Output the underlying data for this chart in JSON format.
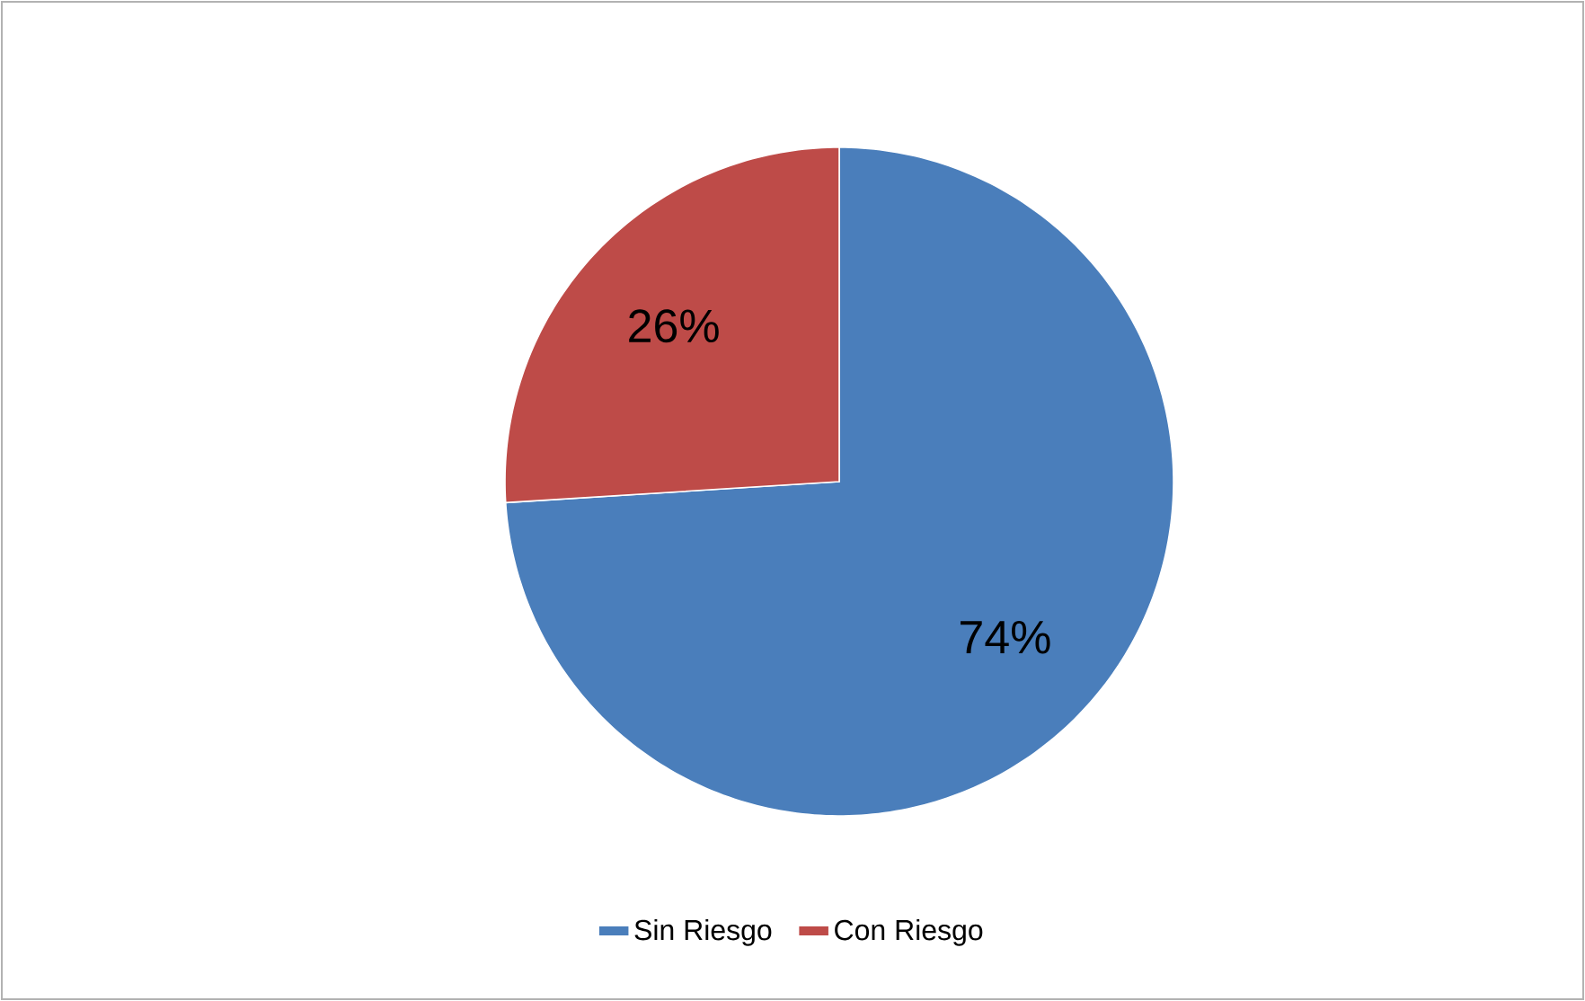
{
  "chart_data": {
    "type": "pie",
    "categories": [
      "Sin Riesgo",
      "Con Riesgo"
    ],
    "values": [
      74,
      26
    ],
    "colors": [
      "#4a7ebb",
      "#be4b48"
    ],
    "data_labels": true,
    "value_labels": [
      "74%",
      "26%"
    ],
    "legend": "bottom"
  }
}
